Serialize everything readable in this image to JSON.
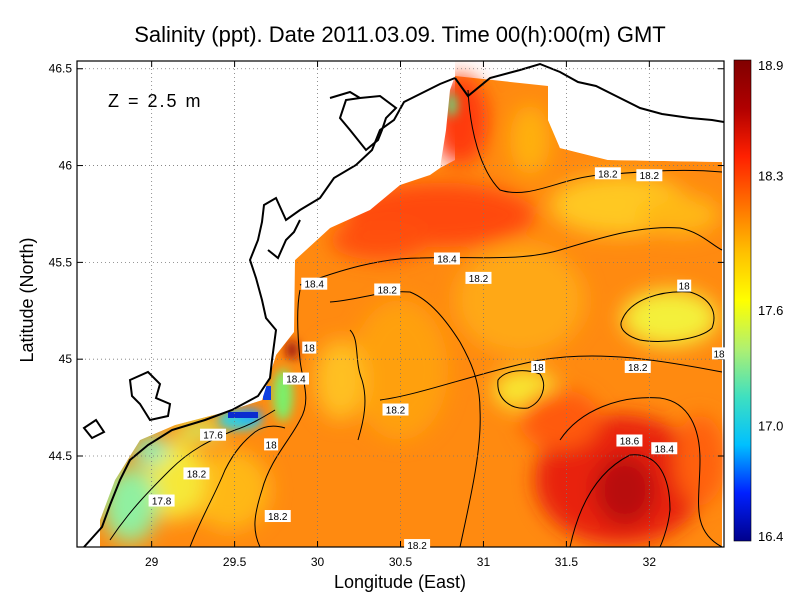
{
  "chart_data": {
    "type": "heatmap",
    "title": "Salinity (ppt). Date 2011.03.09. Time 00(h):00(m) GMT",
    "xlabel": "Longitude (East)",
    "ylabel": "Latitude (North)",
    "annotation": "Z = 2.5 m",
    "xlim": [
      28.55,
      32.45
    ],
    "ylim": [
      44.03,
      46.54
    ],
    "x_ticks": [
      "29",
      "29.5",
      "30",
      "30.5",
      "31",
      "31.5",
      "32"
    ],
    "x_tick_values": [
      29,
      29.5,
      30,
      30.5,
      31,
      31.5,
      32
    ],
    "y_ticks": [
      "44.5",
      "45",
      "45.5",
      "46",
      "46.5"
    ],
    "y_tick_values": [
      44.5,
      45,
      45.5,
      46,
      46.5
    ],
    "grid": true,
    "colorbar": {
      "min": 16.4,
      "max": 18.9,
      "ticks": [
        "16.4",
        "17.0",
        "17.6",
        "18.3",
        "18.9"
      ],
      "tick_values": [
        16.4,
        17.0,
        17.6,
        18.3,
        18.9
      ],
      "colors": [
        "#00008b",
        "#0020ff",
        "#00c0ff",
        "#3fe0c0",
        "#b0f070",
        "#ffff00",
        "#ffc000",
        "#ff7000",
        "#ff2000",
        "#b00000",
        "#800000"
      ]
    },
    "contour_labels": [
      {
        "text": "18.2",
        "lon": 31.75,
        "lat": 45.96
      },
      {
        "text": "18.2",
        "lon": 32.0,
        "lat": 45.95
      },
      {
        "text": "18.4",
        "lon": 30.78,
        "lat": 45.52
      },
      {
        "text": "18.2",
        "lon": 30.97,
        "lat": 45.42
      },
      {
        "text": "18.4",
        "lon": 29.98,
        "lat": 45.39
      },
      {
        "text": "18.2",
        "lon": 30.42,
        "lat": 45.36
      },
      {
        "text": "18",
        "lon": 32.21,
        "lat": 45.38
      },
      {
        "text": "18",
        "lon": 29.95,
        "lat": 45.06
      },
      {
        "text": "18.4",
        "lon": 29.87,
        "lat": 44.9
      },
      {
        "text": "18",
        "lon": 31.33,
        "lat": 44.96
      },
      {
        "text": "18.2",
        "lon": 31.93,
        "lat": 44.96
      },
      {
        "text": "18",
        "lon": 32.42,
        "lat": 45.03
      },
      {
        "text": "18.2",
        "lon": 30.47,
        "lat": 44.74
      },
      {
        "text": "17.6",
        "lon": 29.37,
        "lat": 44.61
      },
      {
        "text": "18",
        "lon": 29.72,
        "lat": 44.56
      },
      {
        "text": "18.6",
        "lon": 31.88,
        "lat": 44.58
      },
      {
        "text": "18.4",
        "lon": 32.09,
        "lat": 44.54
      },
      {
        "text": "18.2",
        "lon": 29.27,
        "lat": 44.41
      },
      {
        "text": "17.8",
        "lon": 29.06,
        "lat": 44.27
      },
      {
        "text": "18.2",
        "lon": 29.76,
        "lat": 44.19
      },
      {
        "text": "18.2",
        "lon": 30.6,
        "lat": 44.04
      }
    ]
  }
}
